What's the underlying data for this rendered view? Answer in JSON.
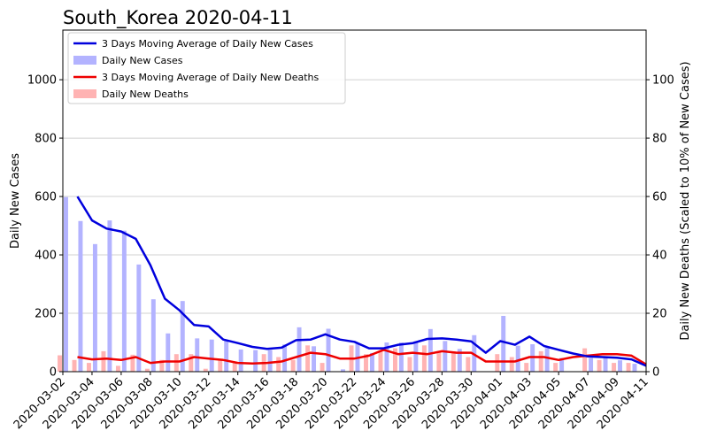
{
  "chart_data": {
    "type": "bar",
    "title": "South_Korea  2020-04-11",
    "ylabel": "Daily New Cases",
    "y2label": "Daily New Deaths (Scaled to 10% of New Cases)",
    "ylim": [
      0,
      1170
    ],
    "y2lim": [
      0,
      117
    ],
    "yticks": [
      0,
      200,
      400,
      600,
      800,
      1000
    ],
    "y2ticks": [
      0,
      20,
      40,
      60,
      80,
      100
    ],
    "grid": "horizontal",
    "legend_position": "top-left",
    "x": [
      "2020-03-02",
      "2020-03-03",
      "2020-03-04",
      "2020-03-05",
      "2020-03-06",
      "2020-03-07",
      "2020-03-08",
      "2020-03-09",
      "2020-03-10",
      "2020-03-11",
      "2020-03-12",
      "2020-03-13",
      "2020-03-14",
      "2020-03-15",
      "2020-03-16",
      "2020-03-17",
      "2020-03-18",
      "2020-03-19",
      "2020-03-20",
      "2020-03-21",
      "2020-03-22",
      "2020-03-23",
      "2020-03-24",
      "2020-03-25",
      "2020-03-26",
      "2020-03-27",
      "2020-03-28",
      "2020-03-29",
      "2020-03-30",
      "2020-03-31",
      "2020-04-01",
      "2020-04-02",
      "2020-04-03",
      "2020-04-04",
      "2020-04-05",
      "2020-04-06",
      "2020-04-07",
      "2020-04-08",
      "2020-04-09",
      "2020-04-10",
      "2020-04-11"
    ],
    "xticks": [
      "2020-03-02",
      "2020-03-04",
      "2020-03-06",
      "2020-03-08",
      "2020-03-10",
      "2020-03-12",
      "2020-03-14",
      "2020-03-16",
      "2020-03-18",
      "2020-03-20",
      "2020-03-22",
      "2020-03-24",
      "2020-03-26",
      "2020-03-28",
      "2020-03-30",
      "2020-04-01",
      "2020-04-03",
      "2020-04-05",
      "2020-04-07",
      "2020-04-09",
      "2020-04-11"
    ],
    "series": [
      {
        "name": "3 Days Moving Average of Daily New Cases",
        "type": "line",
        "axis": "left",
        "color": "#0000dd",
        "values": [
          null,
          600,
          518,
          490,
          480,
          455,
          365,
          250,
          210,
          160,
          155,
          110,
          98,
          85,
          78,
          82,
          108,
          110,
          128,
          110,
          102,
          80,
          80,
          92,
          98,
          112,
          114,
          110,
          104,
          65,
          105,
          92,
          120,
          88,
          75,
          62,
          52,
          50,
          48,
          42,
          20
        ]
      },
      {
        "name": "Daily New Cases",
        "type": "bar",
        "axis": "left",
        "color": "#b3b3ff",
        "values": [
          598,
          516,
          437,
          518,
          483,
          367,
          248,
          131,
          242,
          114,
          110,
          107,
          76,
          74,
          74,
          93,
          152,
          87,
          147,
          8,
          98,
          64,
          100,
          100,
          104,
          146,
          105,
          78,
          125,
          0,
          191,
          89,
          94,
          81,
          47,
          0,
          47,
          53,
          39,
          27,
          0
        ]
      },
      {
        "name": "3 Days Moving Average of Daily New Deaths",
        "type": "line",
        "axis": "right",
        "color": "#ee0000",
        "values": [
          null,
          5,
          4.2,
          4.5,
          4,
          5,
          3,
          3.5,
          3.5,
          5,
          4.5,
          4,
          3,
          2.8,
          3,
          3.5,
          5,
          6.5,
          6,
          4.5,
          4.5,
          5.5,
          7.5,
          6,
          6.5,
          6,
          7,
          6.5,
          6.5,
          3.5,
          3.5,
          3.5,
          5,
          5,
          4,
          5,
          5.5,
          6,
          6,
          5.5,
          2.5
        ]
      },
      {
        "name": "Daily New Deaths",
        "type": "bar",
        "axis": "right",
        "color": "#ffb3b3",
        "values": [
          5.6,
          4,
          3,
          7,
          2,
          5.8,
          1,
          4,
          6,
          6,
          1,
          4,
          3,
          0,
          6,
          5,
          4,
          9,
          3,
          0,
          9,
          6,
          7,
          8,
          5,
          9,
          7,
          7,
          5,
          0,
          6,
          5,
          3,
          7,
          3,
          0,
          8,
          4,
          3,
          3,
          0
        ]
      }
    ]
  }
}
